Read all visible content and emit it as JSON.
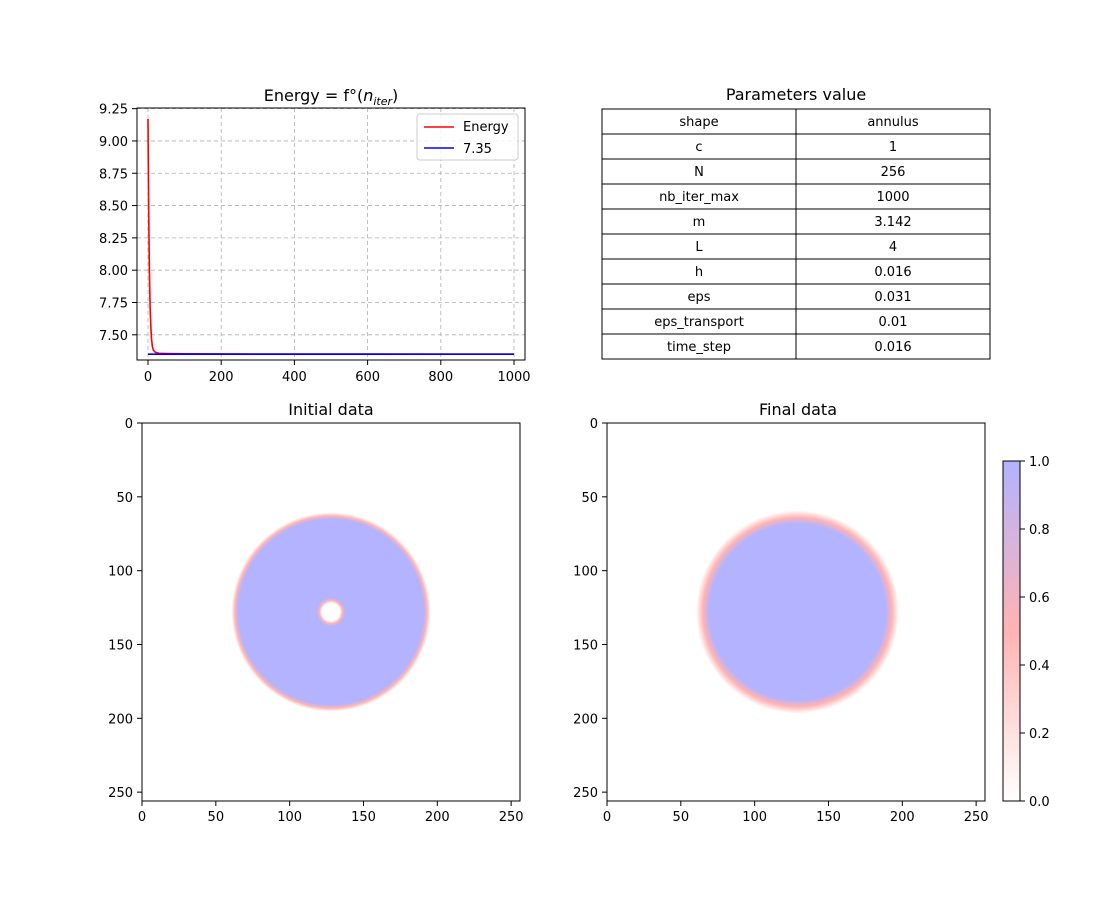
{
  "chart_data": [
    {
      "type": "line",
      "title": "Energy = f°(n_iter)",
      "title_main": "Energy = f°(",
      "title_n": "n",
      "title_sub": "iter",
      "title_close": ")",
      "xlim": [
        -30,
        1030
      ],
      "ylim": [
        7.305,
        9.255
      ],
      "x_ticks": [
        0,
        200,
        400,
        600,
        800,
        1000
      ],
      "x_tick_labels": [
        "0",
        "200",
        "400",
        "600",
        "800",
        "1000"
      ],
      "y_ticks": [
        7.5,
        7.75,
        8.0,
        8.25,
        8.5,
        8.75,
        9.0,
        9.25
      ],
      "y_tick_labels": [
        "7.50",
        "7.75",
        "8.00",
        "8.25",
        "8.50",
        "8.75",
        "9.00",
        "9.25"
      ],
      "grid": true,
      "legend_position": "top-right",
      "series": [
        {
          "name": "Energy",
          "color": "#ff0000",
          "x": [
            0,
            1,
            2,
            3,
            4,
            5,
            6,
            8,
            10,
            12,
            15,
            20,
            30,
            50,
            100,
            200,
            400,
            600,
            800,
            1000
          ],
          "y": [
            9.17,
            8.78,
            8.45,
            8.2,
            7.98,
            7.82,
            7.7,
            7.55,
            7.46,
            7.41,
            7.38,
            7.365,
            7.357,
            7.355,
            7.353,
            7.352,
            7.351,
            7.351,
            7.35,
            7.35
          ]
        },
        {
          "name": "7.35",
          "color": "#0000ff",
          "x": [
            0,
            1000
          ],
          "y": [
            7.35,
            7.35
          ]
        }
      ]
    },
    {
      "type": "table",
      "title": "Parameters value",
      "rows": [
        [
          "shape",
          "annulus"
        ],
        [
          "c",
          "1"
        ],
        [
          "N",
          "256"
        ],
        [
          "nb_iter_max",
          "1000"
        ],
        [
          "m",
          "3.142"
        ],
        [
          "L",
          "4"
        ],
        [
          "h",
          "0.016"
        ],
        [
          "eps",
          "0.031"
        ],
        [
          "eps_transport",
          "0.01"
        ],
        [
          "time_step",
          "0.016"
        ]
      ]
    },
    {
      "type": "heatmap",
      "title": "Initial data",
      "xlim": [
        0,
        256
      ],
      "ylim": [
        256,
        0
      ],
      "x_ticks": [
        0,
        50,
        100,
        150,
        200,
        250
      ],
      "y_ticks": [
        0,
        50,
        100,
        150,
        200,
        250
      ],
      "x_tick_labels": [
        "0",
        "50",
        "100",
        "150",
        "200",
        "250"
      ],
      "y_tick_labels": [
        "0",
        "50",
        "100",
        "150",
        "200",
        "250"
      ],
      "shape": {
        "center": [
          128,
          128
        ],
        "outer_radius": 65,
        "inner_radius": 7,
        "edge_width": 2
      }
    },
    {
      "type": "heatmap",
      "title": "Final data",
      "xlim": [
        0,
        256
      ],
      "ylim": [
        256,
        0
      ],
      "x_ticks": [
        0,
        50,
        100,
        150,
        200,
        250
      ],
      "y_ticks": [
        0,
        50,
        100,
        150,
        200,
        250
      ],
      "x_tick_labels": [
        "0",
        "50",
        "100",
        "150",
        "200",
        "250"
      ],
      "y_tick_labels": [
        "0",
        "50",
        "100",
        "150",
        "200",
        "250"
      ],
      "shape": {
        "center": [
          129,
          128
        ],
        "outer_radius": 64,
        "inner_radius": 0,
        "edge_width": 4
      },
      "colorbar": {
        "range": [
          0,
          1
        ],
        "ticks": [
          0,
          0.2,
          0.4,
          0.6,
          0.8,
          1.0
        ],
        "tick_labels": [
          "0.0",
          "0.2",
          "0.4",
          "0.6",
          "0.8",
          "1.0"
        ],
        "colors": [
          "#ffffff",
          "#ffb3b3",
          "#b3b3ff"
        ]
      }
    }
  ]
}
